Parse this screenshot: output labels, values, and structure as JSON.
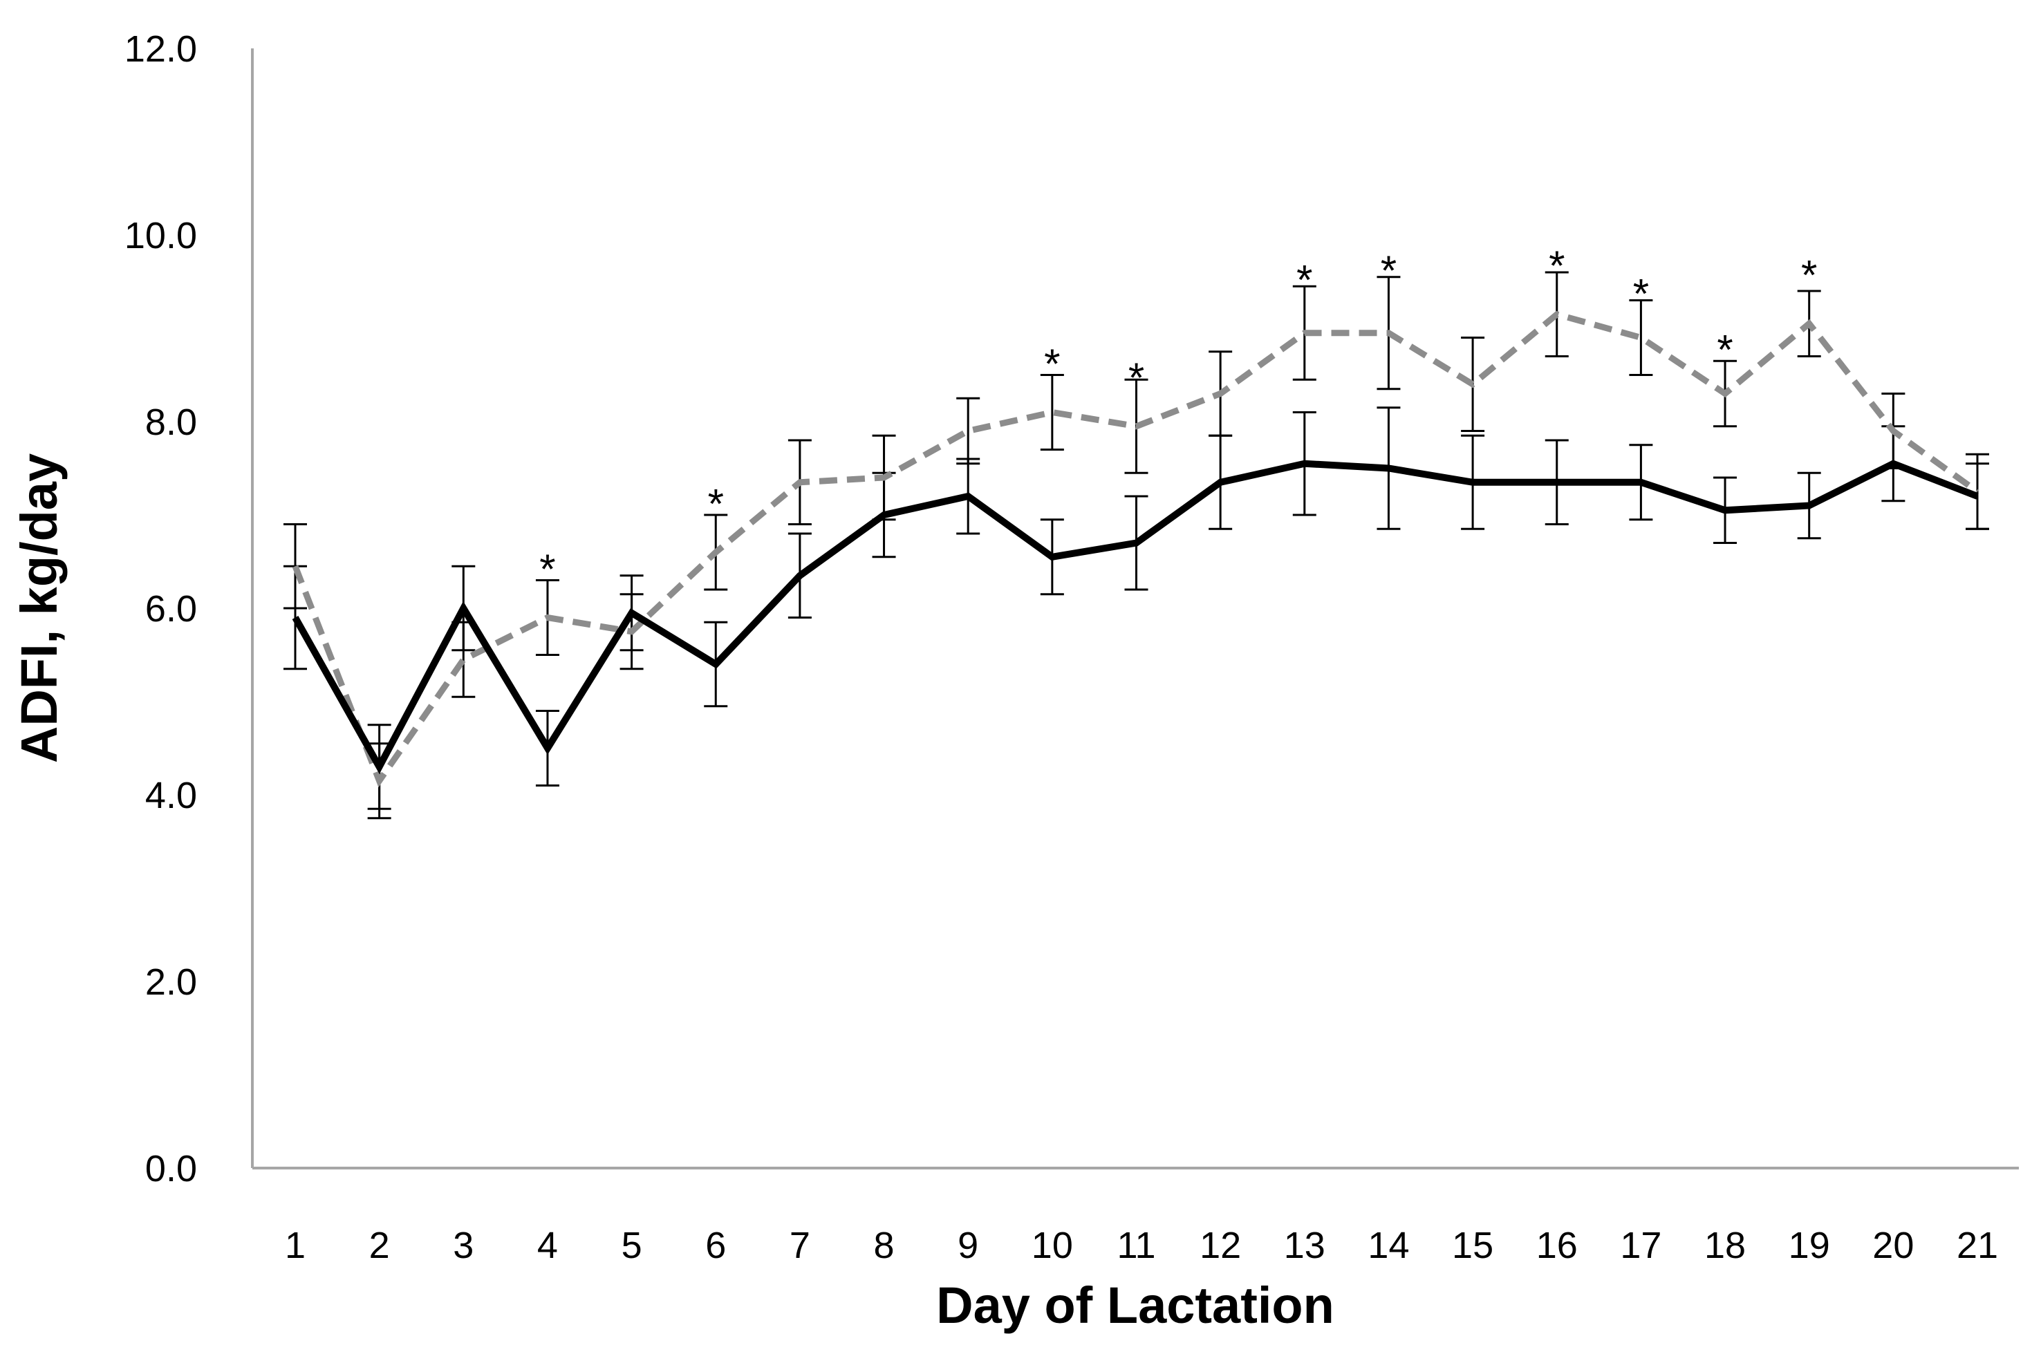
{
  "chart_data": {
    "type": "line",
    "xlabel": "Day of Lactation",
    "ylabel": "ADFI, kg/day",
    "x": [
      "1",
      "2",
      "3",
      "4",
      "5",
      "6",
      "7",
      "8",
      "9",
      "10",
      "11",
      "12",
      "13",
      "14",
      "15",
      "16",
      "17",
      "18",
      "19",
      "20",
      "21"
    ],
    "ylim": [
      0,
      12
    ],
    "yticks": [
      "0.0",
      "2.0",
      "4.0",
      "6.0",
      "8.0",
      "10.0",
      "12.0"
    ],
    "grid": false,
    "legend": "none",
    "series": [
      {
        "style": "solid",
        "color": "#000000",
        "values": [
          5.9,
          4.3,
          6.0,
          4.5,
          5.95,
          5.4,
          6.35,
          7.0,
          7.2,
          6.55,
          6.7,
          7.35,
          7.55,
          7.5,
          7.35,
          7.35,
          7.35,
          7.05,
          7.1,
          7.55,
          7.2
        ],
        "error": [
          0.55,
          0.45,
          0.45,
          0.4,
          0.4,
          0.45,
          0.45,
          0.45,
          0.4,
          0.4,
          0.5,
          0.5,
          0.55,
          0.65,
          0.5,
          0.45,
          0.4,
          0.35,
          0.35,
          0.4,
          0.35
        ]
      },
      {
        "style": "dashed",
        "color": "#8c8c8c",
        "values": [
          6.45,
          4.15,
          5.45,
          5.9,
          5.75,
          6.6,
          7.35,
          7.4,
          7.9,
          8.1,
          7.95,
          8.3,
          8.95,
          8.95,
          8.4,
          9.15,
          8.9,
          8.3,
          9.05,
          7.9,
          7.25
        ],
        "error": [
          0.45,
          0.4,
          0.4,
          0.4,
          0.4,
          0.4,
          0.45,
          0.45,
          0.35,
          0.4,
          0.5,
          0.45,
          0.5,
          0.6,
          0.5,
          0.45,
          0.4,
          0.35,
          0.35,
          0.4,
          0.4
        ]
      }
    ],
    "annotations": [
      {
        "x": "4",
        "y": 6.55,
        "text": "*"
      },
      {
        "x": "6",
        "y": 7.25,
        "text": "*"
      },
      {
        "x": "10",
        "y": 8.75,
        "text": "*"
      },
      {
        "x": "11",
        "y": 8.6,
        "text": "*"
      },
      {
        "x": "13",
        "y": 9.65,
        "text": "*"
      },
      {
        "x": "14",
        "y": 9.75,
        "text": "*"
      },
      {
        "x": "16",
        "y": 9.8,
        "text": "*"
      },
      {
        "x": "17",
        "y": 9.5,
        "text": "*"
      },
      {
        "x": "18",
        "y": 8.9,
        "text": "*"
      },
      {
        "x": "19",
        "y": 9.7,
        "text": "*"
      }
    ]
  }
}
